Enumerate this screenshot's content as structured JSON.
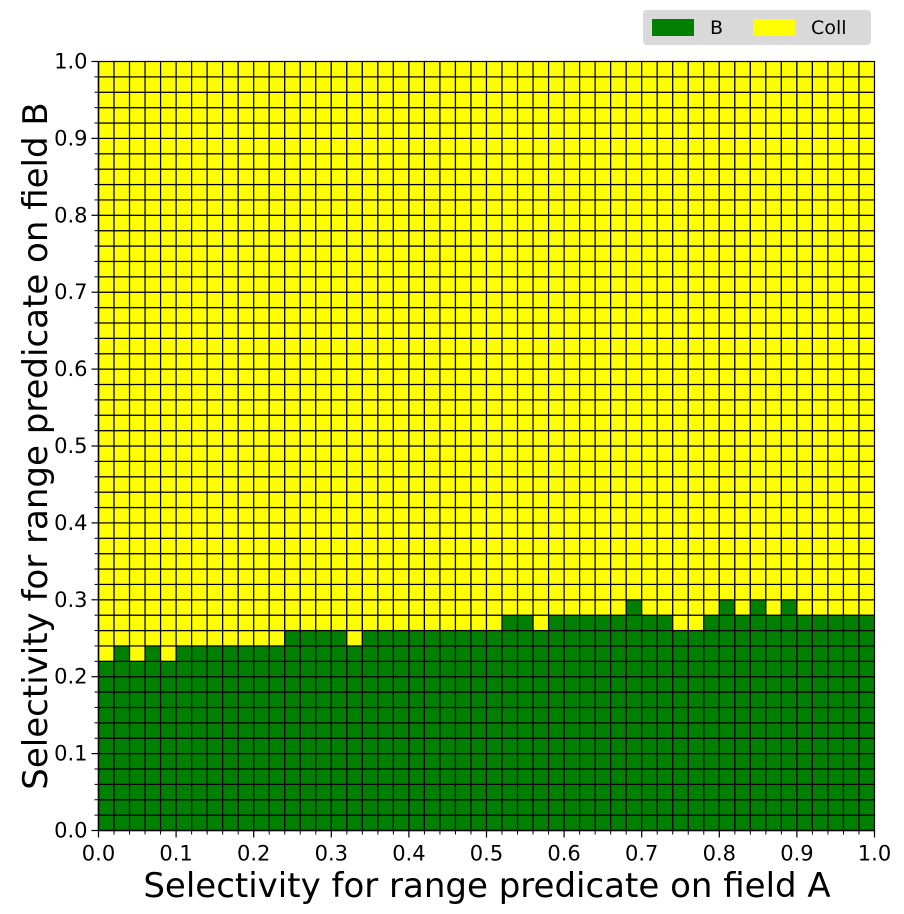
{
  "chart_data": {
    "type": "heatmap",
    "xlabel": "Selectivity for range predicate on field A",
    "ylabel": "Selectivity for range predicate on field B",
    "xlim": [
      0.0,
      1.0
    ],
    "ylim": [
      0.0,
      1.0
    ],
    "x_ticks": [
      "0.0",
      "0.1",
      "0.2",
      "0.3",
      "0.4",
      "0.5",
      "0.6",
      "0.7",
      "0.8",
      "0.9",
      "1.0"
    ],
    "y_ticks": [
      "0.0",
      "0.1",
      "0.2",
      "0.3",
      "0.4",
      "0.5",
      "0.6",
      "0.7",
      "0.8",
      "0.9",
      "1.0"
    ],
    "grid_step": 0.02,
    "legend": {
      "placement": "top-right, above plot",
      "entries": [
        {
          "label": "B",
          "color": "#008000"
        },
        {
          "label": "Coll",
          "color": "#ffff00"
        }
      ]
    },
    "x": [
      0.0,
      0.02,
      0.04,
      0.06,
      0.08,
      0.1,
      0.12,
      0.14,
      0.16,
      0.18,
      0.2,
      0.22,
      0.24,
      0.26,
      0.28,
      0.3,
      0.32,
      0.34,
      0.36,
      0.38,
      0.4,
      0.42,
      0.44,
      0.46,
      0.48,
      0.5,
      0.52,
      0.54,
      0.56,
      0.58,
      0.6,
      0.62,
      0.64,
      0.66,
      0.68,
      0.7,
      0.72,
      0.74,
      0.76,
      0.78,
      0.8,
      0.82,
      0.84,
      0.86,
      0.88,
      0.9,
      0.92,
      0.94,
      0.96,
      0.98
    ],
    "b_upper_boundary": [
      0.22,
      0.24,
      0.22,
      0.24,
      0.22,
      0.24,
      0.24,
      0.24,
      0.24,
      0.24,
      0.24,
      0.24,
      0.26,
      0.26,
      0.26,
      0.26,
      0.24,
      0.26,
      0.26,
      0.26,
      0.26,
      0.26,
      0.26,
      0.26,
      0.26,
      0.26,
      0.28,
      0.28,
      0.26,
      0.28,
      0.28,
      0.28,
      0.28,
      0.28,
      0.3,
      0.28,
      0.28,
      0.26,
      0.26,
      0.28,
      0.3,
      0.28,
      0.3,
      0.28,
      0.3,
      0.28,
      0.28,
      0.28,
      0.28,
      0.28
    ]
  }
}
